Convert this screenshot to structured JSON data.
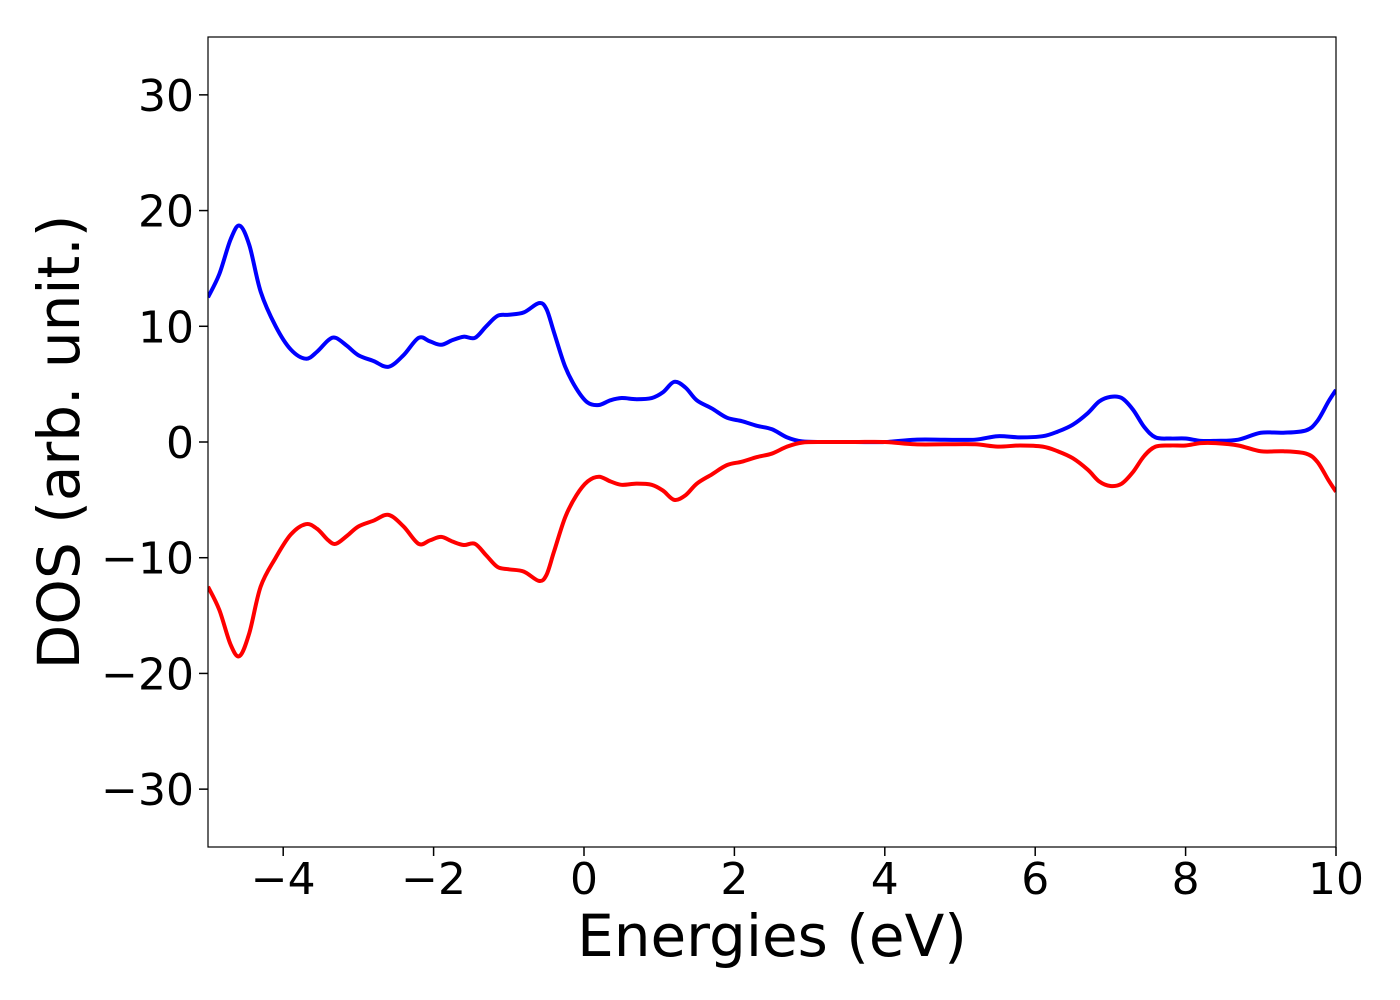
{
  "chart_data": {
    "type": "line",
    "title": "",
    "xlabel": "Energies (eV)",
    "ylabel": "DOS (arb. unit.)",
    "xlim": [
      -5,
      10
    ],
    "ylim": [
      -35,
      35
    ],
    "xticks": [
      -4,
      -2,
      0,
      2,
      4,
      6,
      8,
      10
    ],
    "xtick_labels": [
      "−4",
      "−2",
      "0",
      "2",
      "4",
      "6",
      "8",
      "10"
    ],
    "yticks": [
      30,
      20,
      10,
      0,
      -10,
      -20,
      -30
    ],
    "ytick_labels": [
      "30",
      "20",
      "10",
      "0",
      "−10",
      "−20",
      "−30"
    ],
    "grid": false,
    "legend": "none",
    "x": [
      -5.0,
      -4.85,
      -4.7,
      -4.58,
      -4.45,
      -4.3,
      -4.1,
      -3.9,
      -3.7,
      -3.55,
      -3.4,
      -3.3,
      -3.15,
      -3.0,
      -2.8,
      -2.6,
      -2.4,
      -2.2,
      -2.05,
      -1.9,
      -1.75,
      -1.6,
      -1.45,
      -1.3,
      -1.15,
      -1.0,
      -0.8,
      -0.6,
      -0.5,
      -0.4,
      -0.25,
      -0.1,
      0.05,
      0.2,
      0.35,
      0.5,
      0.7,
      0.9,
      1.05,
      1.2,
      1.35,
      1.5,
      1.7,
      1.9,
      2.1,
      2.3,
      2.5,
      2.7,
      2.9,
      3.2,
      3.6,
      4.0,
      4.4,
      4.8,
      5.2,
      5.5,
      5.8,
      6.1,
      6.3,
      6.5,
      6.7,
      6.85,
      7.0,
      7.15,
      7.3,
      7.45,
      7.6,
      7.8,
      8.0,
      8.2,
      8.4,
      8.7,
      9.0,
      9.3,
      9.6,
      9.75,
      9.9,
      10.0
    ],
    "series": [
      {
        "color": "#0000ff",
        "values": [
          12.5,
          14.5,
          17.5,
          18.7,
          17.0,
          13.0,
          10.0,
          8.0,
          7.2,
          7.8,
          8.8,
          9.0,
          8.3,
          7.5,
          7.0,
          6.5,
          7.5,
          9.0,
          8.7,
          8.4,
          8.8,
          9.1,
          9.0,
          10.0,
          10.9,
          11.0,
          11.2,
          12.0,
          11.5,
          9.5,
          6.5,
          4.6,
          3.4,
          3.2,
          3.6,
          3.8,
          3.7,
          3.8,
          4.3,
          5.2,
          4.7,
          3.6,
          2.9,
          2.1,
          1.8,
          1.4,
          1.1,
          0.4,
          0.05,
          0.0,
          0.0,
          0.0,
          0.2,
          0.2,
          0.2,
          0.5,
          0.4,
          0.5,
          0.9,
          1.5,
          2.5,
          3.5,
          3.9,
          3.8,
          2.8,
          1.3,
          0.4,
          0.3,
          0.3,
          0.1,
          0.1,
          0.2,
          0.8,
          0.8,
          1.0,
          1.8,
          3.5,
          4.5
        ]
      },
      {
        "color": "#ff0000",
        "values": [
          -12.5,
          -14.5,
          -17.5,
          -18.5,
          -16.5,
          -12.5,
          -10.0,
          -8.0,
          -7.1,
          -7.5,
          -8.5,
          -8.8,
          -8.1,
          -7.3,
          -6.8,
          -6.3,
          -7.3,
          -8.8,
          -8.5,
          -8.2,
          -8.6,
          -8.9,
          -8.8,
          -9.8,
          -10.8,
          -11.0,
          -11.2,
          -12.0,
          -11.5,
          -9.5,
          -6.5,
          -4.6,
          -3.4,
          -3.0,
          -3.4,
          -3.7,
          -3.6,
          -3.7,
          -4.2,
          -5.0,
          -4.6,
          -3.6,
          -2.8,
          -2.0,
          -1.7,
          -1.3,
          -1.0,
          -0.4,
          -0.05,
          0.0,
          0.0,
          0.0,
          -0.2,
          -0.2,
          -0.2,
          -0.4,
          -0.3,
          -0.4,
          -0.8,
          -1.4,
          -2.4,
          -3.4,
          -3.8,
          -3.6,
          -2.6,
          -1.2,
          -0.4,
          -0.3,
          -0.3,
          -0.1,
          -0.1,
          -0.3,
          -0.8,
          -0.8,
          -1.0,
          -1.7,
          -3.3,
          -4.3
        ]
      }
    ]
  }
}
